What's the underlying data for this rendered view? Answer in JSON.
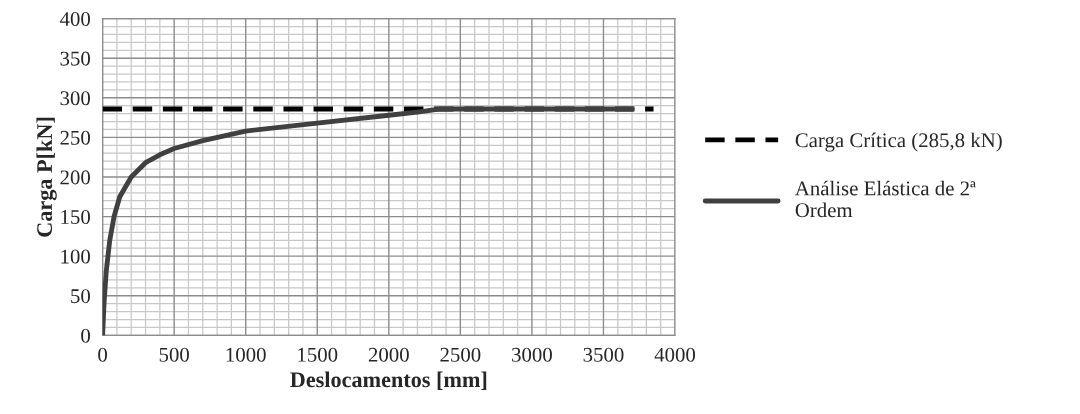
{
  "chart_data": {
    "type": "line",
    "xlabel": "Deslocamentos [mm]",
    "ylabel": "Carga P[kN]",
    "xlim": [
      0,
      4000
    ],
    "xticks": [
      0,
      500,
      1000,
      1500,
      2000,
      2500,
      3000,
      3500,
      4000
    ],
    "ylim": [
      0,
      400
    ],
    "yticks": [
      0,
      50,
      100,
      150,
      200,
      250,
      300,
      350,
      400
    ],
    "grid": true,
    "legend": "right",
    "marker": "none",
    "series": [
      {
        "name": "Carga Crítica (285,8 kN)",
        "color": "#000000",
        "line_style": "dashed",
        "x": [
          0,
          3850
        ],
        "values": [
          285.8,
          285.8
        ]
      },
      {
        "name": "Análise Elástica de 2ª Ordem",
        "color": "#404040",
        "line_style": "solid",
        "x": [
          0,
          10,
          25,
          50,
          80,
          120,
          200,
          300,
          400,
          500,
          700,
          1000,
          1500,
          2000,
          2200,
          2350,
          3700
        ],
        "values": [
          0,
          40,
          80,
          120,
          150,
          175,
          200,
          218,
          228,
          236,
          246,
          258,
          268,
          278,
          282,
          285.8,
          285.8
        ]
      }
    ]
  }
}
